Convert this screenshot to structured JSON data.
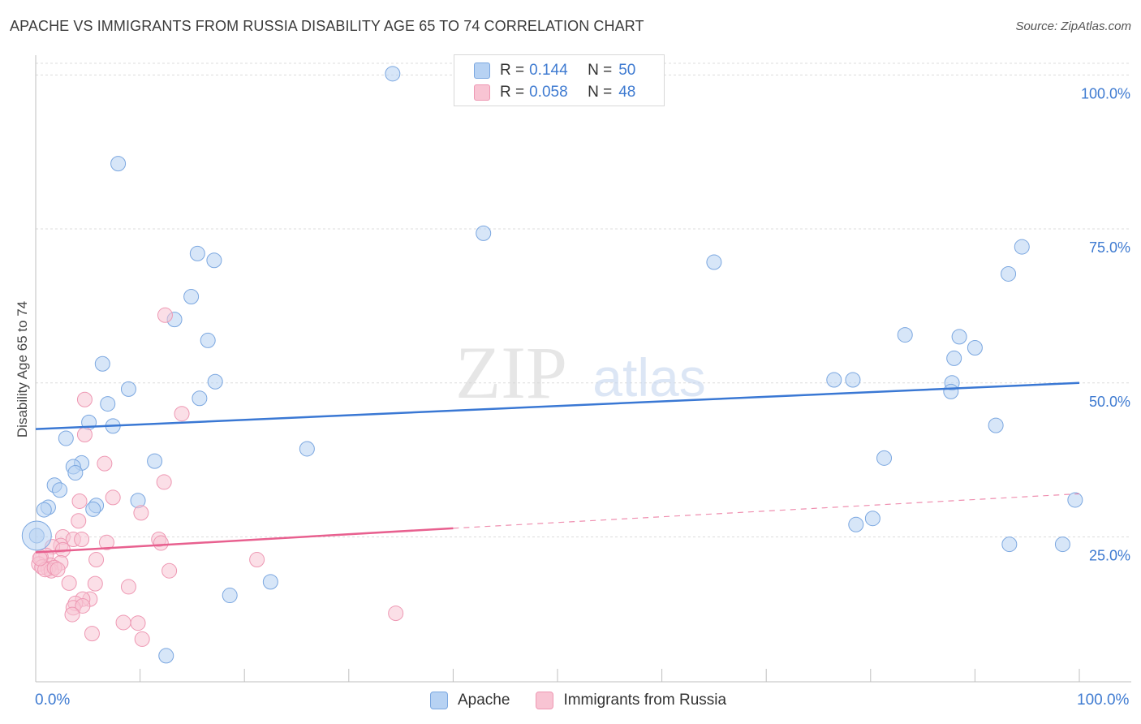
{
  "title": "APACHE VS IMMIGRANTS FROM RUSSIA DISABILITY AGE 65 TO 74 CORRELATION CHART",
  "source": "Source: ZipAtlas.com",
  "watermark": {
    "zip": "ZIP",
    "atlas": "atlas"
  },
  "legend": {
    "r_label": "R =",
    "n_label": "N =",
    "rows": [
      {
        "r": "0.144",
        "n": "50",
        "fill": "#b7d2f3",
        "stroke": "#7ba7e0"
      },
      {
        "r": "0.058",
        "n": "48",
        "fill": "#f8c4d3",
        "stroke": "#ee98b3"
      }
    ]
  },
  "bottom_legend": [
    "Apache",
    "Immigrants from Russia"
  ],
  "colors": {
    "accent": "#3f7bd1",
    "blue_line": "#3a78d4",
    "pink_line": "#e8608f"
  },
  "chart_data": {
    "type": "scatter",
    "title": "APACHE VS IMMIGRANTS FROM RUSSIA DISABILITY AGE 65 TO 74 CORRELATION CHART",
    "xlabel": "",
    "ylabel": "Disability Age 65 to 74",
    "x_tick_labels": [
      "0.0%",
      "100.0%"
    ],
    "y_tick_labels": [
      "25.0%",
      "50.0%",
      "75.0%",
      "100.0%"
    ],
    "y_ticks": [
      25,
      50,
      75,
      100
    ],
    "xlim": [
      0,
      100
    ],
    "ylim": [
      2,
      104
    ],
    "grid": true,
    "series": [
      {
        "name": "Apache",
        "color": "#7ba7e0",
        "fill": "#b7d2f3",
        "trend": {
          "x": [
            0,
            100
          ],
          "y": [
            42.5,
            50.0
          ],
          "color": "#3a78d4"
        },
        "points": [
          [
            34.2,
            100.2
          ],
          [
            7.9,
            85.6
          ],
          [
            42.9,
            74.3
          ],
          [
            15.5,
            71.0
          ],
          [
            17.1,
            69.9
          ],
          [
            65.0,
            69.6
          ],
          [
            14.9,
            64.0
          ],
          [
            13.3,
            60.3
          ],
          [
            16.5,
            56.9
          ],
          [
            6.4,
            53.1
          ],
          [
            17.2,
            50.2
          ],
          [
            8.9,
            49.0
          ],
          [
            15.7,
            47.5
          ],
          [
            6.9,
            46.6
          ],
          [
            5.1,
            43.6
          ],
          [
            7.4,
            43.0
          ],
          [
            2.9,
            41.0
          ],
          [
            26.0,
            39.3
          ],
          [
            11.4,
            37.3
          ],
          [
            4.4,
            37.0
          ],
          [
            3.6,
            36.4
          ],
          [
            3.8,
            35.4
          ],
          [
            1.8,
            33.4
          ],
          [
            2.3,
            32.6
          ],
          [
            9.8,
            30.9
          ],
          [
            5.8,
            30.1
          ],
          [
            1.2,
            29.8
          ],
          [
            5.5,
            29.5
          ],
          [
            0.8,
            29.4
          ],
          [
            18.6,
            15.5
          ],
          [
            22.5,
            17.7
          ],
          [
            12.5,
            5.7
          ],
          [
            0.1,
            25.2
          ],
          [
            83.3,
            57.8
          ],
          [
            88.5,
            57.5
          ],
          [
            90.0,
            55.7
          ],
          [
            88.0,
            54.0
          ],
          [
            76.5,
            50.5
          ],
          [
            78.3,
            50.5
          ],
          [
            87.8,
            50.0
          ],
          [
            87.7,
            48.6
          ],
          [
            92.0,
            43.1
          ],
          [
            81.3,
            37.8
          ],
          [
            93.2,
            67.7
          ],
          [
            94.5,
            72.1
          ],
          [
            80.2,
            28.0
          ],
          [
            78.6,
            27.0
          ],
          [
            99.6,
            31.0
          ],
          [
            93.3,
            23.8
          ],
          [
            98.4,
            23.8
          ]
        ]
      },
      {
        "name": "Immigrants from Russia",
        "color": "#ee98b3",
        "fill": "#f8c4d3",
        "trend": {
          "x": [
            0,
            40
          ],
          "y": [
            22.5,
            26.4
          ],
          "dashed_to": {
            "x": 100,
            "y": 32.0
          },
          "color": "#e8608f"
        },
        "points": [
          [
            12.4,
            61.0
          ],
          [
            4.7,
            47.3
          ],
          [
            14.0,
            45.0
          ],
          [
            4.7,
            41.6
          ],
          [
            6.6,
            36.9
          ],
          [
            12.3,
            33.9
          ],
          [
            7.4,
            31.4
          ],
          [
            4.2,
            30.8
          ],
          [
            10.1,
            28.9
          ],
          [
            4.1,
            27.6
          ],
          [
            2.6,
            25.0
          ],
          [
            3.6,
            24.6
          ],
          [
            4.4,
            24.6
          ],
          [
            6.8,
            24.1
          ],
          [
            11.8,
            24.6
          ],
          [
            12.0,
            24.0
          ],
          [
            2.4,
            23.6
          ],
          [
            1.6,
            23.4
          ],
          [
            2.6,
            22.9
          ],
          [
            1.0,
            22.0
          ],
          [
            0.5,
            21.7
          ],
          [
            0.3,
            20.6
          ],
          [
            2.4,
            20.8
          ],
          [
            1.4,
            20.4
          ],
          [
            1.2,
            19.8
          ],
          [
            0.6,
            20.1
          ],
          [
            5.8,
            21.3
          ],
          [
            21.2,
            21.3
          ],
          [
            12.8,
            19.5
          ],
          [
            3.2,
            17.5
          ],
          [
            5.7,
            17.4
          ],
          [
            8.9,
            16.9
          ],
          [
            5.2,
            14.9
          ],
          [
            4.5,
            14.9
          ],
          [
            3.8,
            14.2
          ],
          [
            3.6,
            13.5
          ],
          [
            4.5,
            13.8
          ],
          [
            3.5,
            12.4
          ],
          [
            34.5,
            12.6
          ],
          [
            8.4,
            11.1
          ],
          [
            9.8,
            11.0
          ],
          [
            5.4,
            9.3
          ],
          [
            10.2,
            8.4
          ],
          [
            1.5,
            19.5
          ],
          [
            0.9,
            19.7
          ],
          [
            1.8,
            20.0
          ],
          [
            2.1,
            19.7
          ],
          [
            0.4,
            21.5
          ]
        ]
      }
    ]
  }
}
